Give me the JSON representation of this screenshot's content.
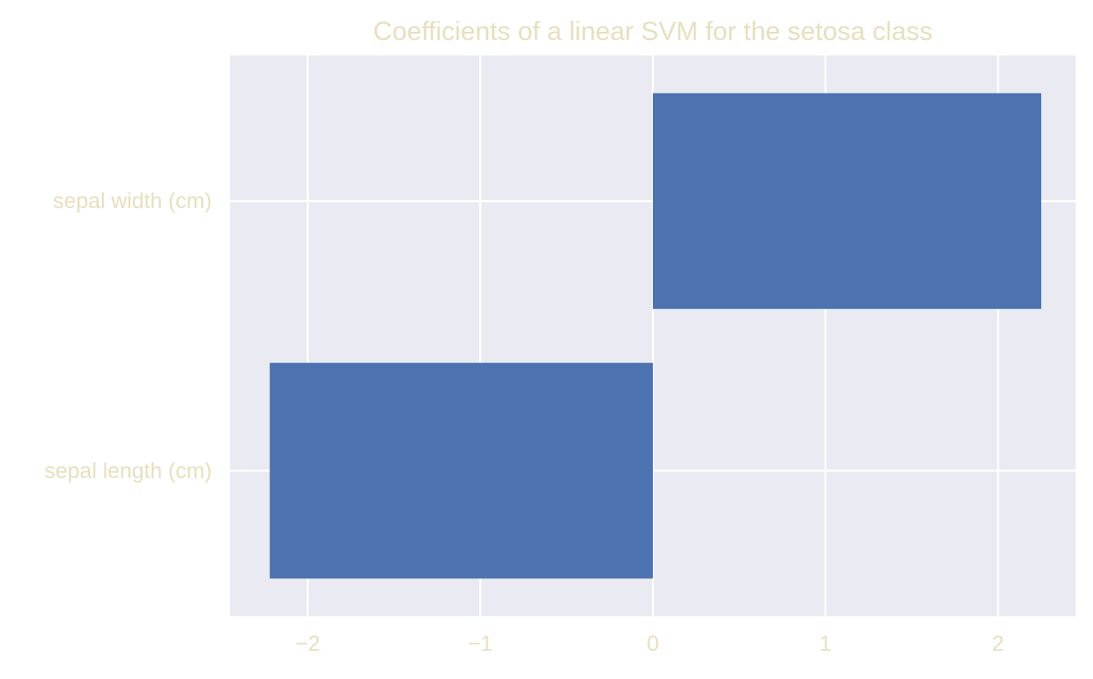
{
  "chart_data": {
    "type": "bar",
    "orientation": "horizontal",
    "title": "Coefficients of a linear SVM for the setosa class",
    "xlabel": "",
    "ylabel": "",
    "categories": [
      "sepal length (cm)",
      "sepal width (cm)"
    ],
    "values": [
      -2.22,
      2.25
    ],
    "xlim": [
      -2.45,
      2.45
    ],
    "xticks": [
      -2,
      -1,
      0,
      1,
      2
    ],
    "xtick_labels": [
      "−2",
      "−1",
      "0",
      "1",
      "2"
    ],
    "grid": true,
    "legend": "none"
  },
  "colors": {
    "bar": "#4c72b0",
    "plot_background": "#eaeaf2",
    "grid": "#ffffff",
    "text": "#e8dfbf",
    "page_background": "#ffffff"
  }
}
